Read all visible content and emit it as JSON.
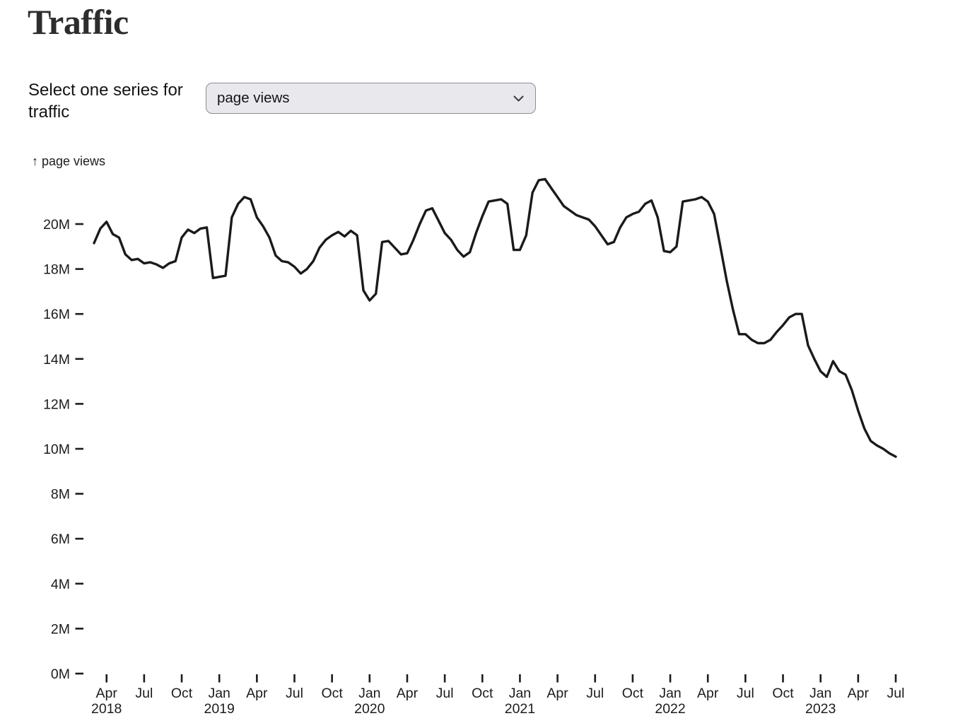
{
  "page": {
    "title": "Traffic"
  },
  "controls": {
    "select_label": "Select one series for traffic",
    "series_select": {
      "selected": "page views",
      "options": [
        "page views"
      ]
    }
  },
  "chart_data": {
    "type": "line",
    "title": "page views",
    "axis_label": "↑ page views",
    "series_name": "page views",
    "unit": "M",
    "x_start": "2018-03-01",
    "x_end": "2023-07-01",
    "step_months": 0.5,
    "line_color": "#1a1a1a",
    "grid": false,
    "legend_position": "none",
    "ylim_millions": [
      0,
      22.3
    ],
    "y_ticks": [
      {
        "label": "0M",
        "value": 0
      },
      {
        "label": "2M",
        "value": 2
      },
      {
        "label": "4M",
        "value": 4
      },
      {
        "label": "6M",
        "value": 6
      },
      {
        "label": "8M",
        "value": 8
      },
      {
        "label": "10M",
        "value": 10
      },
      {
        "label": "12M",
        "value": 12
      },
      {
        "label": "14M",
        "value": 14
      },
      {
        "label": "16M",
        "value": 16
      },
      {
        "label": "18M",
        "value": 18
      },
      {
        "label": "20M",
        "value": 20
      }
    ],
    "x_ticks": [
      {
        "label": "Apr",
        "year": "2018"
      },
      {
        "label": "Jul"
      },
      {
        "label": "Oct"
      },
      {
        "label": "Jan",
        "year": "2019"
      },
      {
        "label": "Apr"
      },
      {
        "label": "Jul"
      },
      {
        "label": "Oct"
      },
      {
        "label": "Jan",
        "year": "2020"
      },
      {
        "label": "Apr"
      },
      {
        "label": "Jul"
      },
      {
        "label": "Oct"
      },
      {
        "label": "Jan",
        "year": "2021"
      },
      {
        "label": "Apr"
      },
      {
        "label": "Jul"
      },
      {
        "label": "Oct"
      },
      {
        "label": "Jan",
        "year": "2022"
      },
      {
        "label": "Apr"
      },
      {
        "label": "Jul"
      },
      {
        "label": "Oct"
      },
      {
        "label": "Jan",
        "year": "2023"
      },
      {
        "label": "Apr"
      },
      {
        "label": "Jul"
      }
    ],
    "values_millions": [
      19.15,
      19.8,
      20.1,
      19.55,
      19.4,
      18.65,
      18.4,
      18.45,
      18.25,
      18.3,
      18.2,
      18.05,
      18.25,
      18.35,
      19.4,
      19.75,
      19.6,
      19.8,
      19.85,
      17.6,
      17.65,
      17.7,
      20.3,
      20.9,
      21.2,
      21.1,
      20.3,
      19.9,
      19.4,
      18.6,
      18.35,
      18.3,
      18.1,
      17.8,
      18.0,
      18.35,
      18.95,
      19.3,
      19.5,
      19.65,
      19.45,
      19.7,
      19.5,
      17.05,
      16.6,
      16.9,
      19.2,
      19.25,
      18.95,
      18.65,
      18.7,
      19.3,
      20.0,
      20.6,
      20.7,
      20.15,
      19.6,
      19.3,
      18.85,
      18.55,
      18.75,
      19.6,
      20.35,
      21.0,
      21.05,
      21.1,
      20.9,
      18.85,
      18.85,
      19.5,
      21.4,
      21.95,
      22.0,
      21.6,
      21.2,
      20.8,
      20.6,
      20.4,
      20.3,
      20.2,
      19.9,
      19.5,
      19.1,
      19.2,
      19.85,
      20.3,
      20.45,
      20.55,
      20.9,
      21.05,
      20.3,
      18.8,
      18.75,
      19.0,
      21.0,
      21.05,
      21.1,
      21.2,
      21.0,
      20.45,
      19.0,
      17.5,
      16.2,
      15.1,
      15.1,
      14.85,
      14.7,
      14.7,
      14.85,
      15.2,
      15.5,
      15.85,
      16.0,
      16.0,
      14.6,
      14.0,
      13.45,
      13.2,
      13.9,
      13.45,
      13.3,
      12.6,
      11.7,
      10.9,
      10.35,
      10.15,
      10.0,
      9.8,
      9.65
    ]
  }
}
